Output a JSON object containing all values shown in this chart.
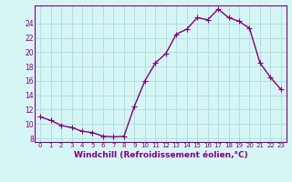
{
  "x": [
    0,
    1,
    2,
    3,
    4,
    5,
    6,
    7,
    8,
    9,
    10,
    11,
    12,
    13,
    14,
    15,
    16,
    17,
    18,
    19,
    20,
    21,
    22,
    23
  ],
  "y": [
    11.0,
    10.5,
    9.8,
    9.5,
    9.0,
    8.8,
    8.3,
    8.2,
    8.3,
    12.5,
    16.0,
    18.5,
    19.8,
    22.5,
    23.2,
    24.8,
    24.5,
    26.0,
    24.8,
    24.3,
    23.3,
    18.5,
    16.5,
    14.8
  ],
  "line_color": "#800080",
  "marker": "+",
  "marker_color": "#800080",
  "bg_color": "#d6f5f5",
  "grid_color": "#aadddd",
  "xlabel": "Windchill (Refroidissement éolien,°C)",
  "ylabel": "",
  "title": "",
  "xlim": [
    -0.5,
    23.5
  ],
  "ylim": [
    7.5,
    26.5
  ],
  "yticks": [
    8,
    10,
    12,
    14,
    16,
    18,
    20,
    22,
    24
  ],
  "xticks": [
    0,
    1,
    2,
    3,
    4,
    5,
    6,
    7,
    8,
    9,
    10,
    11,
    12,
    13,
    14,
    15,
    16,
    17,
    18,
    19,
    20,
    21,
    22,
    23
  ],
  "label_color": "#800080",
  "spine_color": "#800080",
  "font_size": 6.5,
  "xlabel_fontsize": 6.5,
  "line_width": 1.0,
  "marker_size": 4
}
